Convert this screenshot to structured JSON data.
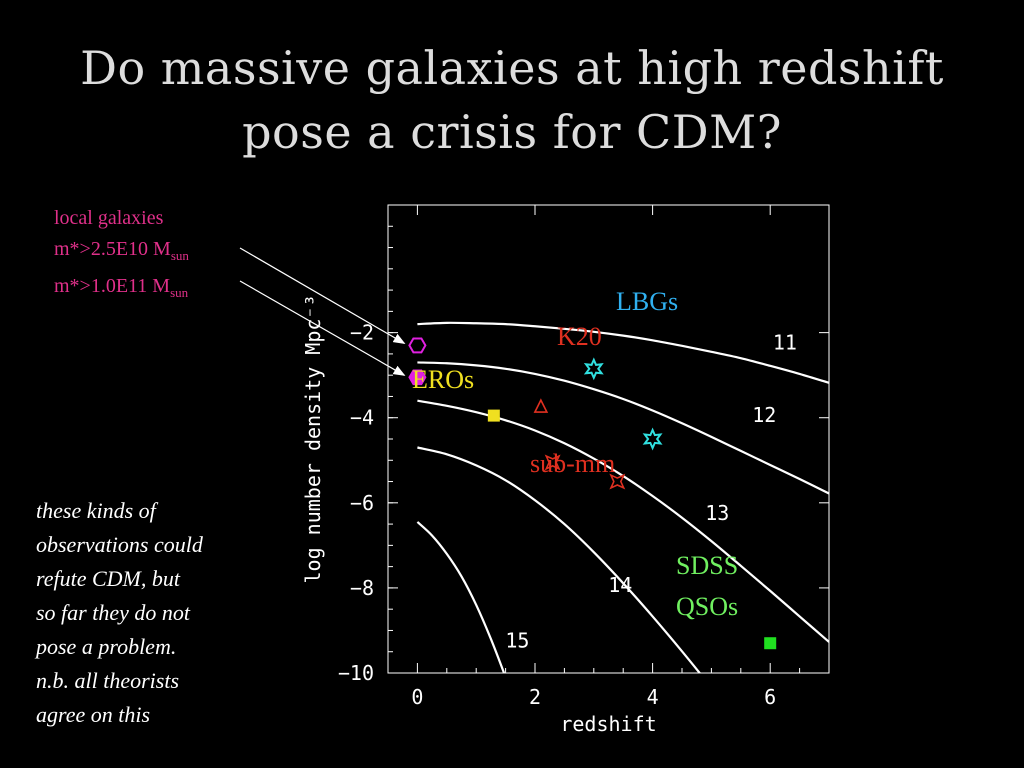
{
  "slide": {
    "title_line1": "Do massive galaxies at high redshift",
    "title_line2": "pose a crisis for CDM?",
    "local_galaxies": {
      "line1": "local galaxies",
      "line2_base": "m*>2.5E10 M",
      "line2_sub": "sun",
      "line3_base": "m*>1.0E11 M",
      "line3_sub": "sun",
      "color": "#e0308a"
    },
    "note_lines": [
      "these kinds of",
      "observations could",
      "refute CDM, but",
      "so far they do not",
      "pose a problem.",
      "n.b. all theorists",
      "agree on this"
    ]
  },
  "chart_data": {
    "type": "line",
    "xlabel": "redshift",
    "ylabel": "log number density Mpc⁻³",
    "xlim": [
      -0.5,
      7.0
    ],
    "ylim": [
      -10.0,
      1.0
    ],
    "xticks": [
      0,
      2,
      4,
      6
    ],
    "yticks": [
      -10,
      -8,
      -6,
      -4,
      -2
    ],
    "series": [
      {
        "name": "11",
        "x": [
          0,
          0.5,
          1,
          1.5,
          2,
          2.5,
          3,
          3.5,
          4,
          4.5,
          5,
          5.5,
          6,
          6.5,
          7
        ],
        "y": [
          -1.8,
          -1.77,
          -1.78,
          -1.8,
          -1.85,
          -1.91,
          -1.98,
          -2.07,
          -2.18,
          -2.31,
          -2.45,
          -2.6,
          -2.78,
          -2.97,
          -3.18
        ]
      },
      {
        "name": "12",
        "x": [
          0,
          0.5,
          1,
          1.5,
          2,
          2.5,
          3,
          3.5,
          4,
          4.5,
          5,
          5.5,
          6,
          6.5,
          7
        ],
        "y": [
          -2.7,
          -2.72,
          -2.77,
          -2.85,
          -2.97,
          -3.13,
          -3.33,
          -3.56,
          -3.83,
          -4.13,
          -4.45,
          -4.78,
          -5.11,
          -5.44,
          -5.78
        ]
      },
      {
        "name": "13",
        "x": [
          0,
          0.5,
          1,
          1.5,
          2,
          2.5,
          3,
          3.5,
          4,
          4.5,
          5,
          5.5,
          6,
          6.5,
          7
        ],
        "y": [
          -3.6,
          -3.72,
          -3.87,
          -4.06,
          -4.3,
          -4.6,
          -4.96,
          -5.37,
          -5.84,
          -6.35,
          -6.9,
          -7.48,
          -8.07,
          -8.67,
          -9.27
        ]
      },
      {
        "name": "14",
        "x": [
          0,
          0.5,
          1,
          1.5,
          2,
          2.5,
          3,
          3.5,
          4,
          4.5,
          5,
          5.3
        ],
        "y": [
          -4.7,
          -4.86,
          -5.12,
          -5.47,
          -5.94,
          -6.5,
          -7.16,
          -7.89,
          -8.67,
          -9.49,
          -10.34,
          -10.85
        ]
      },
      {
        "name": "15",
        "x": [
          0,
          0.25,
          0.5,
          0.75,
          1,
          1.25,
          1.5,
          1.6
        ],
        "y": [
          -6.45,
          -6.77,
          -7.2,
          -7.73,
          -8.4,
          -9.2,
          -10.1,
          -10.5
        ]
      }
    ],
    "curve_labels": [
      {
        "text": "11",
        "x": 6.25,
        "y": -2.4
      },
      {
        "text": "12",
        "x": 5.9,
        "y": -4.1
      },
      {
        "text": "13",
        "x": 5.1,
        "y": -6.4
      },
      {
        "text": "14",
        "x": 3.45,
        "y": -8.1
      },
      {
        "text": "15",
        "x": 1.7,
        "y": -9.4
      }
    ],
    "points": [
      {
        "label": "local galaxies m*>2.5E10",
        "shape": "hexagon-open",
        "color": "#e020e0",
        "x": 0.0,
        "y": -2.3
      },
      {
        "label": "local galaxies m*>1.0E11",
        "shape": "hexagon-filled",
        "color": "#e020e0",
        "x": 0.0,
        "y": -3.05
      },
      {
        "label": "LBGs",
        "shape": "star-open",
        "color": "#30e0e0",
        "x": 3.0,
        "y": -2.85
      },
      {
        "label": "LBGs",
        "shape": "star-open",
        "color": "#30e0e0",
        "x": 4.0,
        "y": -4.5
      },
      {
        "label": "K20",
        "shape": "triangle-open",
        "color": "#e03020",
        "x": 2.1,
        "y": -3.75
      },
      {
        "label": "EROs",
        "shape": "square-filled",
        "color": "#f0e020",
        "x": 1.3,
        "y": -3.95
      },
      {
        "label": "sub-mm",
        "shape": "cross-open",
        "color": "#e03020",
        "x": 2.3,
        "y": -5.05
      },
      {
        "label": "sub-mm",
        "shape": "cross-open",
        "color": "#e03020",
        "x": 3.4,
        "y": -5.5
      },
      {
        "label": "SDSS QSOs",
        "shape": "square-filled",
        "color": "#20e020",
        "x": 6.0,
        "y": -9.3
      }
    ],
    "population_labels": [
      {
        "text": "LBGs",
        "color": "#30b0f0"
      },
      {
        "text": "K20",
        "color": "#e03020"
      },
      {
        "text": "EROs",
        "color": "#f0e020"
      },
      {
        "text": "sub-mm",
        "color": "#e03020"
      },
      {
        "text": "SDSS",
        "color": "#70f060"
      },
      {
        "text": "QSOs",
        "color": "#70f060"
      }
    ],
    "grid": false,
    "legend": "none"
  }
}
